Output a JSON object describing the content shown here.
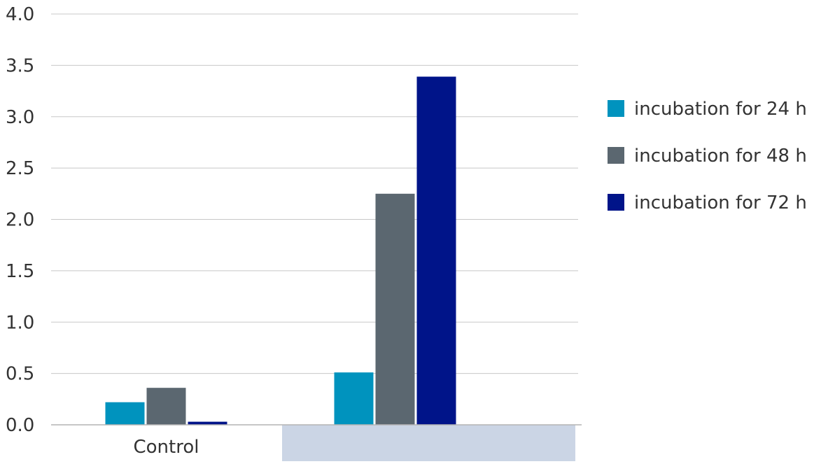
{
  "chart_data": {
    "type": "bar",
    "categories": [
      "Control",
      ""
    ],
    "series": [
      {
        "name": "incubation for 24 h",
        "values": [
          0.22,
          0.51
        ],
        "color": "#0093BE"
      },
      {
        "name": "incubation for 48 h",
        "values": [
          0.36,
          2.25
        ],
        "color": "#5B6770"
      },
      {
        "name": "incubation for 72 h",
        "values": [
          0.03,
          3.39
        ],
        "color": "#001489"
      }
    ],
    "title": "",
    "xlabel": "",
    "ylabel": "",
    "ylim": [
      0,
      4.0
    ],
    "yticks": [
      "0.0",
      "0.5",
      "1.0",
      "1.5",
      "2.0",
      "2.5",
      "3.0",
      "3.5",
      "4.0"
    ],
    "grid": true,
    "legend_position": "right",
    "highlight_category_color": "#CBD5E5",
    "gridline_color": "#C8C8C8",
    "axis_color": "#B4B4B4",
    "text_color": "#333333"
  }
}
